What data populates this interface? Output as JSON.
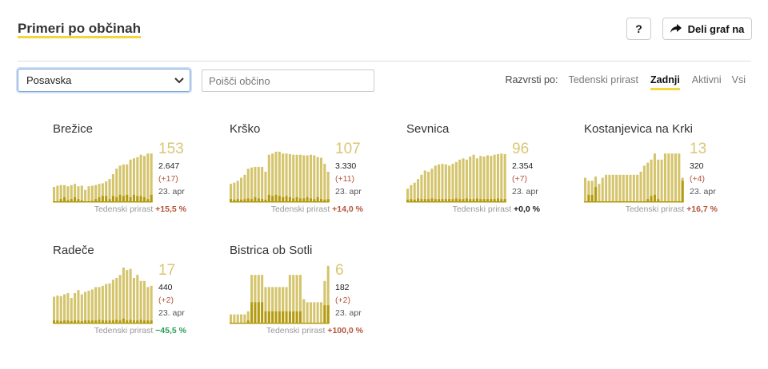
{
  "header": {
    "title": "Primeri po občinah",
    "help_label": "?",
    "share_label": "Deli graf na"
  },
  "filters": {
    "region_selected": "Posavska",
    "search_placeholder": "Poišči občino"
  },
  "sort": {
    "label": "Razvrsti po:",
    "options": [
      "Tedenski prirast",
      "Zadnji",
      "Aktivni",
      "Vsi"
    ],
    "active": "Zadnji"
  },
  "colors": {
    "accent": "#f4d63a",
    "bar": "#d4c46c",
    "bar_dark": "#b39a0f",
    "positive": "#b5533a",
    "negative": "#2a9d5c"
  },
  "cards": [
    {
      "name": "Brežice",
      "active": "153",
      "total": "2.647",
      "delta": "(+17)",
      "date": "23. apr",
      "growth_label": "Tedenski prirast",
      "growth": "+15,5 %",
      "growth_sign": "pos",
      "bars": [
        0.25,
        0.27,
        0.28,
        0.28,
        0.26,
        0.28,
        0.3,
        0.26,
        0.27,
        0.2,
        0.26,
        0.27,
        0.28,
        0.3,
        0.31,
        0.34,
        0.38,
        0.46,
        0.55,
        0.6,
        0.62,
        0.62,
        0.7,
        0.72,
        0.74,
        0.78,
        0.76,
        0.8,
        0.8
      ],
      "dark": [
        0,
        0,
        0.05,
        0.08,
        0.03,
        0.05,
        0.08,
        0.05,
        0.03,
        0,
        0,
        0.02,
        0.05,
        0.08,
        0.1,
        0.1,
        0.05,
        0.1,
        0.08,
        0.12,
        0.1,
        0.12,
        0.08,
        0.12,
        0.1,
        0.1,
        0.08,
        0.05,
        0.12
      ]
    },
    {
      "name": "Krško",
      "active": "107",
      "total": "3.330",
      "delta": "(+11)",
      "date": "23. apr",
      "growth_label": "Tedenski prirast",
      "growth": "+14,0 %",
      "growth_sign": "pos",
      "bars": [
        0.3,
        0.32,
        0.35,
        0.4,
        0.45,
        0.55,
        0.57,
        0.58,
        0.58,
        0.58,
        0.5,
        0.78,
        0.8,
        0.83,
        0.83,
        0.8,
        0.8,
        0.79,
        0.78,
        0.78,
        0.78,
        0.77,
        0.77,
        0.78,
        0.77,
        0.74,
        0.73,
        0.63,
        0.5
      ],
      "dark": [
        0.05,
        0.04,
        0.05,
        0.04,
        0.05,
        0.06,
        0.05,
        0.08,
        0.06,
        0.05,
        0.04,
        0.12,
        0.1,
        0.12,
        0.1,
        0.08,
        0.1,
        0.08,
        0.06,
        0.08,
        0.06,
        0.06,
        0.08,
        0.06,
        0.05,
        0.08,
        0.05,
        0.04,
        0.05
      ]
    },
    {
      "name": "Sevnica",
      "active": "96",
      "total": "2.354",
      "delta": "(+7)",
      "date": "23. apr",
      "growth_label": "Tedenski prirast",
      "growth": "+0,0 %",
      "growth_sign": "zero",
      "bars": [
        0.22,
        0.28,
        0.32,
        0.38,
        0.45,
        0.52,
        0.5,
        0.55,
        0.6,
        0.62,
        0.63,
        0.62,
        0.6,
        0.63,
        0.66,
        0.7,
        0.72,
        0.7,
        0.75,
        0.78,
        0.72,
        0.76,
        0.75,
        0.77,
        0.76,
        0.78,
        0.79,
        0.8,
        0.79
      ],
      "dark": [
        0.04,
        0.05,
        0.04,
        0.06,
        0.05,
        0.05,
        0.05,
        0.06,
        0.05,
        0.05,
        0.05,
        0.05,
        0.05,
        0.05,
        0.06,
        0.05,
        0.05,
        0.06,
        0.05,
        0.05,
        0.06,
        0.05,
        0.05,
        0.05,
        0.05,
        0.05,
        0.06,
        0.05,
        0.05
      ]
    },
    {
      "name": "Kostanjevica na Krki",
      "active": "13",
      "total": "320",
      "delta": "(+4)",
      "date": "23. apr",
      "growth_label": "Tedenski prirast",
      "growth": "+16,7 %",
      "growth_sign": "pos",
      "bars": [
        0.4,
        0.35,
        0.35,
        0.42,
        0.3,
        0.4,
        0.45,
        0.45,
        0.45,
        0.45,
        0.45,
        0.45,
        0.45,
        0.45,
        0.45,
        0.45,
        0.5,
        0.6,
        0.65,
        0.7,
        0.8,
        0.7,
        0.7,
        0.8,
        0.8,
        0.8,
        0.8,
        0.8,
        0.4
      ],
      "dark": [
        0,
        0.12,
        0.12,
        0.25,
        0,
        0,
        0,
        0,
        0,
        0,
        0,
        0,
        0,
        0,
        0,
        0,
        0,
        0,
        0.05,
        0.1,
        0.12,
        0.05,
        0,
        0,
        0,
        0,
        0,
        0,
        0.35
      ]
    },
    {
      "name": "Radeče",
      "active": "17",
      "total": "440",
      "delta": "(+2)",
      "date": "23. apr",
      "growth_label": "Tedenski prirast",
      "growth": "−45,5 %",
      "growth_sign": "neg",
      "bars": [
        0.44,
        0.46,
        0.45,
        0.48,
        0.5,
        0.42,
        0.5,
        0.55,
        0.48,
        0.52,
        0.54,
        0.56,
        0.6,
        0.6,
        0.62,
        0.65,
        0.66,
        0.72,
        0.75,
        0.8,
        0.92,
        0.88,
        0.9,
        0.75,
        0.8,
        0.7,
        0.7,
        0.6,
        0.62
      ],
      "dark": [
        0.05,
        0.05,
        0.04,
        0.05,
        0.05,
        0.04,
        0.05,
        0.05,
        0.04,
        0.05,
        0.05,
        0.05,
        0.05,
        0.06,
        0.05,
        0.05,
        0.05,
        0.05,
        0.06,
        0.05,
        0.08,
        0.05,
        0.06,
        0.05,
        0.05,
        0.06,
        0.05,
        0.05,
        0.05
      ]
    },
    {
      "name": "Bistrica ob Sotli",
      "active": "6",
      "total": "182",
      "delta": "(+2)",
      "date": "23. apr",
      "growth_label": "Tedenski prirast",
      "growth": "+100,0 %",
      "growth_sign": "pos",
      "bars": [
        0.15,
        0.15,
        0.15,
        0.15,
        0.15,
        0.2,
        0.8,
        0.8,
        0.8,
        0.8,
        0.6,
        0.6,
        0.6,
        0.6,
        0.6,
        0.6,
        0.6,
        0.8,
        0.8,
        0.8,
        0.8,
        0.4,
        0.35,
        0.35,
        0.35,
        0.35,
        0.35,
        0.7,
        0.95
      ],
      "dark": [
        0,
        0,
        0,
        0,
        0,
        0.05,
        0.35,
        0.35,
        0.35,
        0.35,
        0.2,
        0.2,
        0.2,
        0.2,
        0.2,
        0.2,
        0.2,
        0.2,
        0.2,
        0.2,
        0.2,
        0,
        0,
        0,
        0,
        0,
        0,
        0.3,
        0.3
      ]
    }
  ]
}
